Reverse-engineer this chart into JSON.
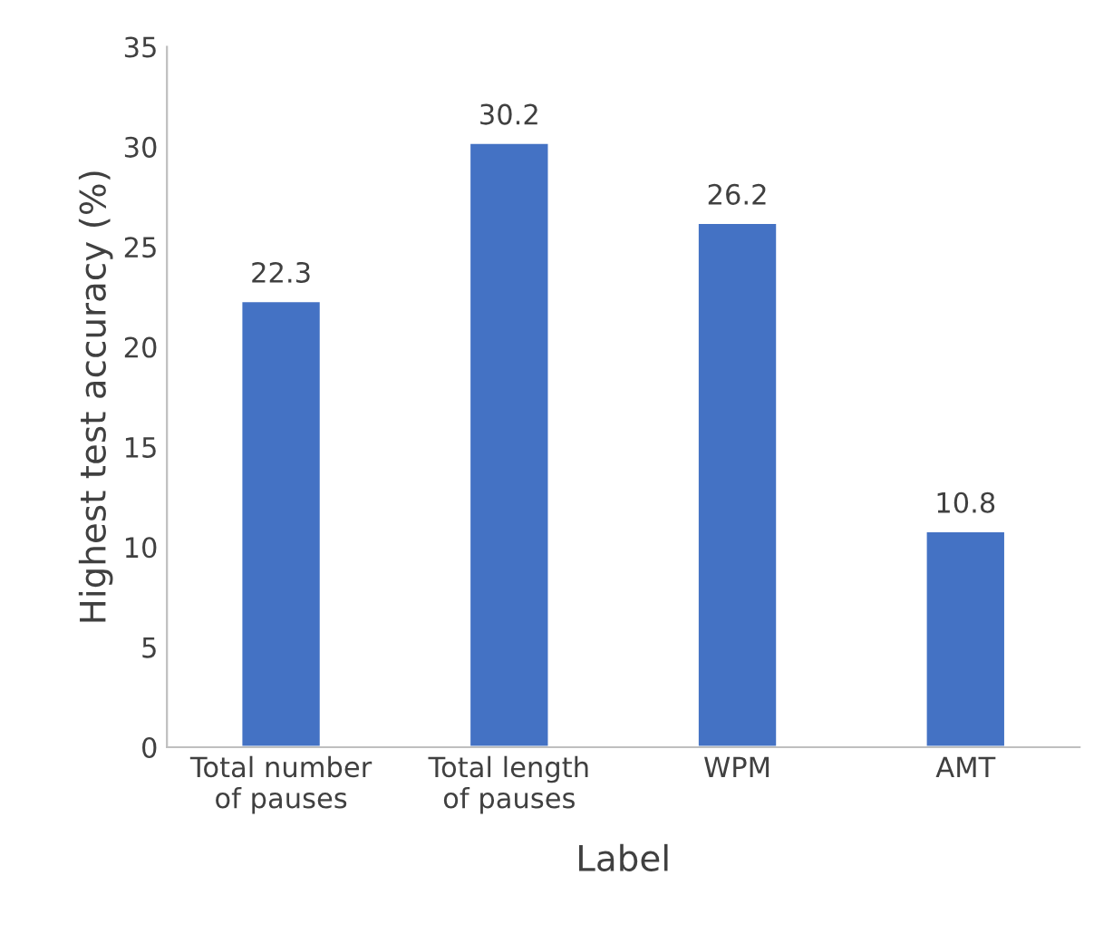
{
  "chart_data": {
    "type": "bar",
    "xlabel": "Label",
    "ylabel": "Highest test accuracy (%)",
    "categories": [
      "Total number\nof pauses",
      "Total length\nof pauses",
      "WPM",
      "AMT"
    ],
    "values": [
      22.3,
      30.2,
      26.2,
      10.8
    ],
    "color": "#4472c4",
    "ylim": [
      0,
      35
    ],
    "yticks": [
      0,
      5,
      10,
      15,
      20,
      25,
      30,
      35
    ],
    "grid": false,
    "data_labels": true
  }
}
